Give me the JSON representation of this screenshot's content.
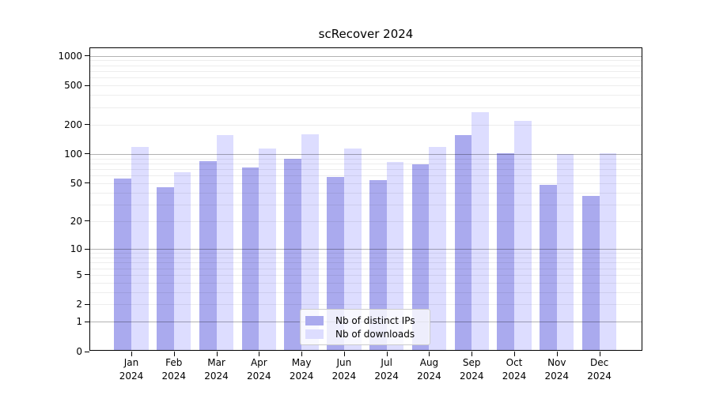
{
  "chart_data": {
    "type": "bar",
    "title": "scRecover 2024",
    "categories": [
      "Jan 2024",
      "Feb 2024",
      "Mar 2024",
      "Apr 2024",
      "May 2024",
      "Jun 2024",
      "Jul 2024",
      "Aug 2024",
      "Sep 2024",
      "Oct 2024",
      "Nov 2024",
      "Dec 2024"
    ],
    "series": [
      {
        "name": "Nb of distinct IPs",
        "color": "#aaaaee",
        "values": [
          56,
          45,
          85,
          73,
          89,
          58,
          54,
          78,
          155,
          102,
          48,
          37
        ]
      },
      {
        "name": "Nb of downloads",
        "color": "#ddddff",
        "values": [
          118,
          65,
          155,
          113,
          160,
          114,
          82,
          119,
          265,
          216,
          99,
          102
        ]
      }
    ],
    "y_axis": {
      "scale": "log10(1+value)",
      "ticks": [
        0,
        1,
        2,
        5,
        10,
        20,
        50,
        100,
        200,
        500,
        1000
      ],
      "major_gridline_values": [
        1,
        10,
        100,
        1000
      ],
      "range": [
        0,
        1000
      ]
    },
    "legend": {
      "position": "lower-center"
    },
    "grid": true
  }
}
